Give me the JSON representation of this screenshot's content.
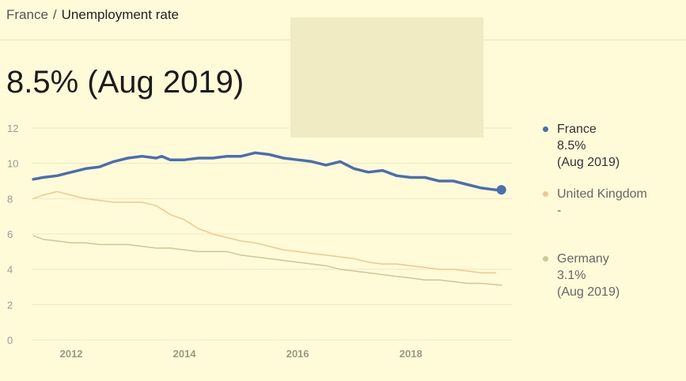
{
  "breadcrumb": {
    "parent": "France",
    "separator": "/",
    "current": "Unemployment rate"
  },
  "headline": "8.5% (Aug 2019)",
  "legend": [
    {
      "name": "France",
      "value": "8.5%",
      "date": "(Aug 2019)",
      "color": "#4a6fae"
    },
    {
      "name": "United Kingdom",
      "value": "-",
      "date": "",
      "color": "#f2c88f"
    },
    {
      "name": "Germany",
      "value": "3.1%",
      "date": "(Aug 2019)",
      "color": "#c9c99a"
    }
  ],
  "chart_data": {
    "type": "line",
    "ylim": [
      0,
      12
    ],
    "y_ticks": [
      0,
      2,
      4,
      6,
      8,
      10,
      12
    ],
    "x_ticks": [
      2012,
      2014,
      2016,
      2018
    ],
    "xlim": [
      2011.3,
      2019.8
    ],
    "grid": true,
    "legend_position": "right",
    "series": [
      {
        "name": "France",
        "color": "#4a6fae",
        "x": [
          2011.33,
          2011.5,
          2011.75,
          2012.0,
          2012.25,
          2012.5,
          2012.75,
          2013.0,
          2013.25,
          2013.5,
          2013.6,
          2013.75,
          2014.0,
          2014.25,
          2014.5,
          2014.75,
          2015.0,
          2015.25,
          2015.5,
          2015.75,
          2016.0,
          2016.25,
          2016.5,
          2016.75,
          2017.0,
          2017.25,
          2017.5,
          2017.75,
          2018.0,
          2018.25,
          2018.5,
          2018.75,
          2019.0,
          2019.25,
          2019.5,
          2019.6
        ],
        "y": [
          9.1,
          9.2,
          9.3,
          9.5,
          9.7,
          9.8,
          10.1,
          10.3,
          10.4,
          10.3,
          10.4,
          10.2,
          10.2,
          10.3,
          10.3,
          10.4,
          10.4,
          10.6,
          10.5,
          10.3,
          10.2,
          10.1,
          9.9,
          10.1,
          9.7,
          9.5,
          9.6,
          9.3,
          9.2,
          9.2,
          9.0,
          9.0,
          8.8,
          8.6,
          8.5,
          8.5
        ]
      },
      {
        "name": "United Kingdom",
        "color": "#f2c88f",
        "x": [
          2011.33,
          2011.5,
          2011.75,
          2012.0,
          2012.25,
          2012.5,
          2012.75,
          2013.0,
          2013.25,
          2013.5,
          2013.75,
          2014.0,
          2014.25,
          2014.5,
          2014.75,
          2015.0,
          2015.25,
          2015.5,
          2015.75,
          2016.0,
          2016.25,
          2016.5,
          2016.75,
          2017.0,
          2017.25,
          2017.5,
          2017.75,
          2018.0,
          2018.25,
          2018.5,
          2018.75,
          2019.0,
          2019.25,
          2019.5
        ],
        "y": [
          8.0,
          8.2,
          8.4,
          8.2,
          8.0,
          7.9,
          7.8,
          7.8,
          7.8,
          7.6,
          7.1,
          6.8,
          6.3,
          6.0,
          5.8,
          5.6,
          5.5,
          5.3,
          5.1,
          5.0,
          4.9,
          4.8,
          4.7,
          4.6,
          4.4,
          4.3,
          4.3,
          4.2,
          4.1,
          4.0,
          4.0,
          3.9,
          3.8,
          3.8
        ]
      },
      {
        "name": "Germany",
        "color": "#c9c99a",
        "x": [
          2011.33,
          2011.5,
          2011.75,
          2012.0,
          2012.25,
          2012.5,
          2012.75,
          2013.0,
          2013.25,
          2013.5,
          2013.75,
          2014.0,
          2014.25,
          2014.5,
          2014.75,
          2015.0,
          2015.25,
          2015.5,
          2015.75,
          2016.0,
          2016.25,
          2016.5,
          2016.75,
          2017.0,
          2017.25,
          2017.5,
          2017.75,
          2018.0,
          2018.25,
          2018.5,
          2018.75,
          2019.0,
          2019.25,
          2019.6
        ],
        "y": [
          5.9,
          5.7,
          5.6,
          5.5,
          5.5,
          5.4,
          5.4,
          5.4,
          5.3,
          5.2,
          5.2,
          5.1,
          5.0,
          5.0,
          5.0,
          4.8,
          4.7,
          4.6,
          4.5,
          4.4,
          4.3,
          4.2,
          4.0,
          3.9,
          3.8,
          3.7,
          3.6,
          3.5,
          3.4,
          3.4,
          3.3,
          3.2,
          3.2,
          3.1
        ]
      }
    ]
  }
}
